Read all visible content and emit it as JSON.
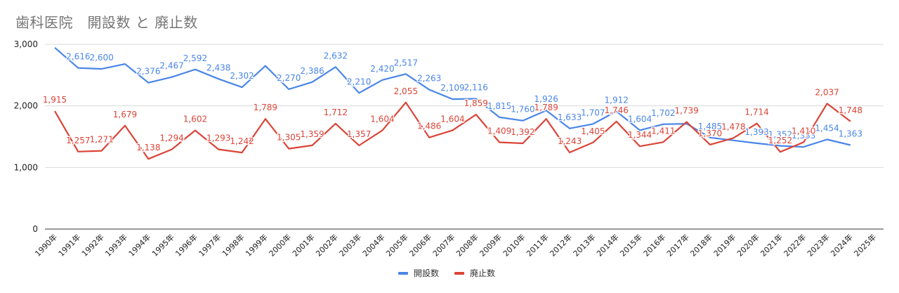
{
  "title": "歯科医院　開設数 と 廃止数",
  "legend": [
    {
      "label": "開設数",
      "color": "#4a86e8"
    },
    {
      "label": "廃止数",
      "color": "#db4437"
    }
  ],
  "chart_data": {
    "type": "line",
    "title": "歯科医院　開設数 と 廃止数",
    "xlabel": "",
    "ylabel": "",
    "ylim": [
      0,
      3000
    ],
    "yticks": [
      0,
      1000,
      2000,
      3000
    ],
    "ytick_labels": [
      "0",
      "1,000",
      "2,000",
      "3,000"
    ],
    "grid": true,
    "legend_position": "bottom",
    "categories": [
      "1990年",
      "1991年",
      "1992年",
      "1993年",
      "1994年",
      "1995年",
      "1996年",
      "1997年",
      "1998年",
      "1999年",
      "2000年",
      "2001年",
      "2002年",
      "2003年",
      "2004年",
      "2005年",
      "2006年",
      "2007年",
      "2008年",
      "2009年",
      "2010年",
      "2011年",
      "2012年",
      "2013年",
      "2014年",
      "2015年",
      "2016年",
      "2017年",
      "2018年",
      "2019年",
      "2020年",
      "2021年",
      "2022年",
      "2023年",
      "2024年",
      "2025年"
    ],
    "series": [
      {
        "name": "開設数",
        "color": "#4a86e8",
        "values": [
          2945,
          2616,
          2600,
          2680,
          2376,
          2467,
          2592,
          2438,
          2302,
          2650,
          2270,
          2386,
          2632,
          2210,
          2420,
          2517,
          2263,
          2109,
          2116,
          1815,
          1760,
          1926,
          1633,
          1707,
          1912,
          1604,
          1702,
          1710,
          1485,
          1440,
          1393,
          1352,
          1333,
          1454,
          1363,
          null
        ],
        "labels": [
          null,
          "2,616",
          "2,600",
          null,
          "2,376",
          "2,467",
          "2,592",
          "2,438",
          "2,302",
          null,
          "2,270",
          "2,386",
          "2,632",
          "2,210",
          "2,420",
          "2,517",
          "2,263",
          "2,109",
          "2,116",
          "1,815",
          "1,760",
          "1,926",
          "1,633",
          "1,707",
          "1,912",
          "1,604",
          "1,702",
          null,
          "1,485",
          null,
          "1,393",
          "1,352",
          "1,333",
          "1,454",
          "1,363",
          null
        ]
      },
      {
        "name": "廃止数",
        "color": "#db4437",
        "values": [
          1915,
          1257,
          1271,
          1679,
          1138,
          1294,
          1602,
          1293,
          1242,
          1789,
          1305,
          1359,
          1712,
          1357,
          1604,
          2055,
          1486,
          1604,
          1859,
          1409,
          1392,
          1789,
          1243,
          1405,
          1746,
          1344,
          1411,
          1739,
          1370,
          1478,
          1714,
          1252,
          1410,
          2037,
          1748,
          null
        ],
        "labels": [
          "1,915",
          "1,257",
          "1,271",
          "1,679",
          "1,138",
          "1,294",
          "1,602",
          "1,293",
          "1,242",
          "1,789",
          "1,305",
          "1,359",
          "1,712",
          "1,357",
          "1,604",
          "2,055",
          "1,486",
          "1,604",
          "1,859",
          "1,409",
          "1,392",
          "1,789",
          "1,243",
          "1,405",
          "1,746",
          "1,344",
          "1,411",
          "1,739",
          "1,370",
          "1,478",
          "1,714",
          "1,252",
          "1,410",
          "2,037",
          "1,748",
          null
        ]
      }
    ]
  }
}
